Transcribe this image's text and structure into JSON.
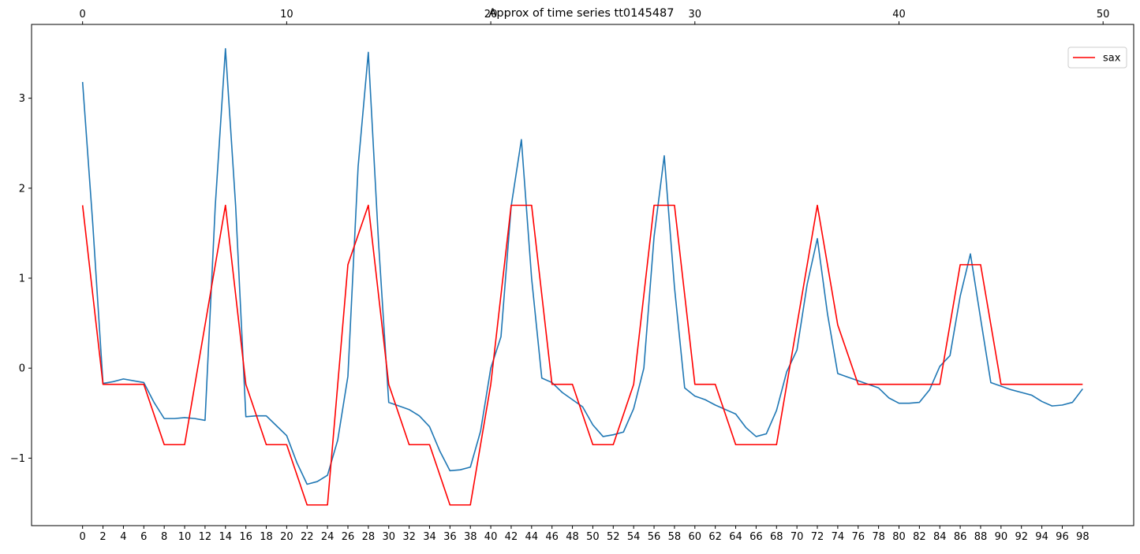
{
  "chart_data": {
    "type": "line",
    "title": "Approx of time series tt0145487",
    "xlabel": "",
    "ylabel": "",
    "grid": false,
    "legend_position": "top-right",
    "xlim_bottom": [
      -5,
      103
    ],
    "xlim_top": [
      -2.5,
      51.5
    ],
    "ylim": [
      -1.75,
      3.82
    ],
    "x_ticks_bottom": [
      0,
      2,
      4,
      6,
      8,
      10,
      12,
      14,
      16,
      18,
      20,
      22,
      24,
      26,
      28,
      30,
      32,
      34,
      36,
      38,
      40,
      42,
      44,
      46,
      48,
      50,
      52,
      54,
      56,
      58,
      60,
      62,
      64,
      66,
      68,
      70,
      72,
      74,
      76,
      78,
      80,
      82,
      84,
      86,
      88,
      90,
      92,
      94,
      96,
      98
    ],
    "x_tick_labels_bottom": [
      "0",
      "2",
      "4",
      "6",
      "8",
      "10",
      "12",
      "14",
      "16",
      "18",
      "20",
      "22",
      "24",
      "26",
      "28",
      "30",
      "32",
      "34",
      "36",
      "38",
      "40",
      "42",
      "44",
      "46",
      "48",
      "50",
      "52",
      "54",
      "56",
      "58",
      "60",
      "62",
      "64",
      "66",
      "68",
      "70",
      "72",
      "74",
      "76",
      "78",
      "80",
      "82",
      "84",
      "86",
      "88",
      "90",
      "92",
      "94",
      "96",
      "98"
    ],
    "x_ticks_top": [
      0,
      10,
      20,
      30,
      40,
      50
    ],
    "x_tick_labels_top": [
      "0",
      "10",
      "20",
      "30",
      "40",
      "50"
    ],
    "y_ticks": [
      -1,
      0,
      1,
      2,
      3
    ],
    "y_tick_labels": [
      "−1",
      "0",
      "1",
      "2",
      "3"
    ],
    "series": [
      {
        "color": "#1f77b4",
        "axis": "bottom",
        "x": [
          0,
          1,
          2,
          3,
          4,
          5,
          6,
          7,
          8,
          9,
          10,
          11,
          12,
          13,
          14,
          15,
          16,
          17,
          18,
          19,
          20,
          21,
          22,
          23,
          24,
          25,
          26,
          27,
          28,
          29,
          30,
          31,
          32,
          33,
          34,
          35,
          36,
          37,
          38,
          39,
          40,
          41,
          42,
          43,
          44,
          45,
          46,
          47,
          48,
          49,
          50,
          51,
          52,
          53,
          54,
          55,
          56,
          57,
          58,
          59,
          60,
          61,
          62,
          63,
          64,
          65,
          66,
          67,
          68,
          69,
          70,
          71,
          72,
          73,
          74,
          75,
          76,
          77,
          78,
          79,
          80,
          81,
          82,
          83,
          84,
          85,
          86,
          87,
          88,
          89,
          90,
          91,
          92,
          93,
          94,
          95,
          96,
          97,
          98
        ],
        "y": [
          3.18,
          1.6,
          -0.17,
          -0.15,
          -0.12,
          -0.14,
          -0.16,
          -0.38,
          -0.56,
          -0.56,
          -0.55,
          -0.56,
          -0.58,
          1.8,
          3.55,
          1.8,
          -0.54,
          -0.53,
          -0.53,
          -0.64,
          -0.75,
          -1.05,
          -1.29,
          -1.26,
          -1.19,
          -0.8,
          -0.09,
          2.24,
          3.51,
          1.4,
          -0.38,
          -0.42,
          -0.46,
          -0.53,
          -0.65,
          -0.92,
          -1.14,
          -1.13,
          -1.1,
          -0.7,
          0.0,
          0.35,
          1.8,
          2.54,
          1.0,
          -0.11,
          -0.16,
          -0.27,
          -0.35,
          -0.43,
          -0.63,
          -0.76,
          -0.74,
          -0.71,
          -0.45,
          0.0,
          1.46,
          2.36,
          0.9,
          -0.22,
          -0.31,
          -0.35,
          -0.41,
          -0.46,
          -0.51,
          -0.66,
          -0.76,
          -0.73,
          -0.47,
          -0.04,
          0.2,
          0.93,
          1.44,
          0.6,
          -0.06,
          -0.1,
          -0.14,
          -0.18,
          -0.22,
          -0.33,
          -0.39,
          -0.39,
          -0.38,
          -0.24,
          0.02,
          0.14,
          0.8,
          1.27,
          0.55,
          -0.16,
          -0.2,
          -0.24,
          -0.27,
          -0.3,
          -0.37,
          -0.42,
          -0.41,
          -0.38,
          -0.23
        ]
      },
      {
        "name": "sax",
        "color": "#ff0000",
        "axis": "bottom",
        "x": [
          0,
          2,
          4,
          6,
          8,
          10,
          12,
          14,
          16,
          18,
          20,
          22,
          24,
          26,
          28,
          30,
          32,
          34,
          36,
          38,
          40,
          42,
          44,
          46,
          48,
          50,
          52,
          54,
          56,
          58,
          60,
          62,
          64,
          66,
          68,
          70,
          72,
          74,
          76,
          78,
          80,
          82,
          84,
          86,
          88,
          90,
          92,
          94,
          96,
          98
        ],
        "y": [
          1.81,
          -0.18,
          -0.18,
          -0.18,
          -0.85,
          -0.85,
          0.48,
          1.81,
          -0.18,
          -0.85,
          -0.85,
          -1.52,
          -1.52,
          1.15,
          1.81,
          -0.18,
          -0.85,
          -0.85,
          -1.52,
          -1.52,
          -0.18,
          1.81,
          1.81,
          -0.18,
          -0.18,
          -0.85,
          -0.85,
          -0.18,
          1.81,
          1.81,
          -0.18,
          -0.18,
          -0.85,
          -0.85,
          -0.85,
          0.48,
          1.81,
          0.48,
          -0.18,
          -0.18,
          -0.18,
          -0.18,
          -0.18,
          1.15,
          1.15,
          -0.18,
          -0.18,
          -0.18,
          -0.18,
          -0.18
        ]
      }
    ]
  }
}
